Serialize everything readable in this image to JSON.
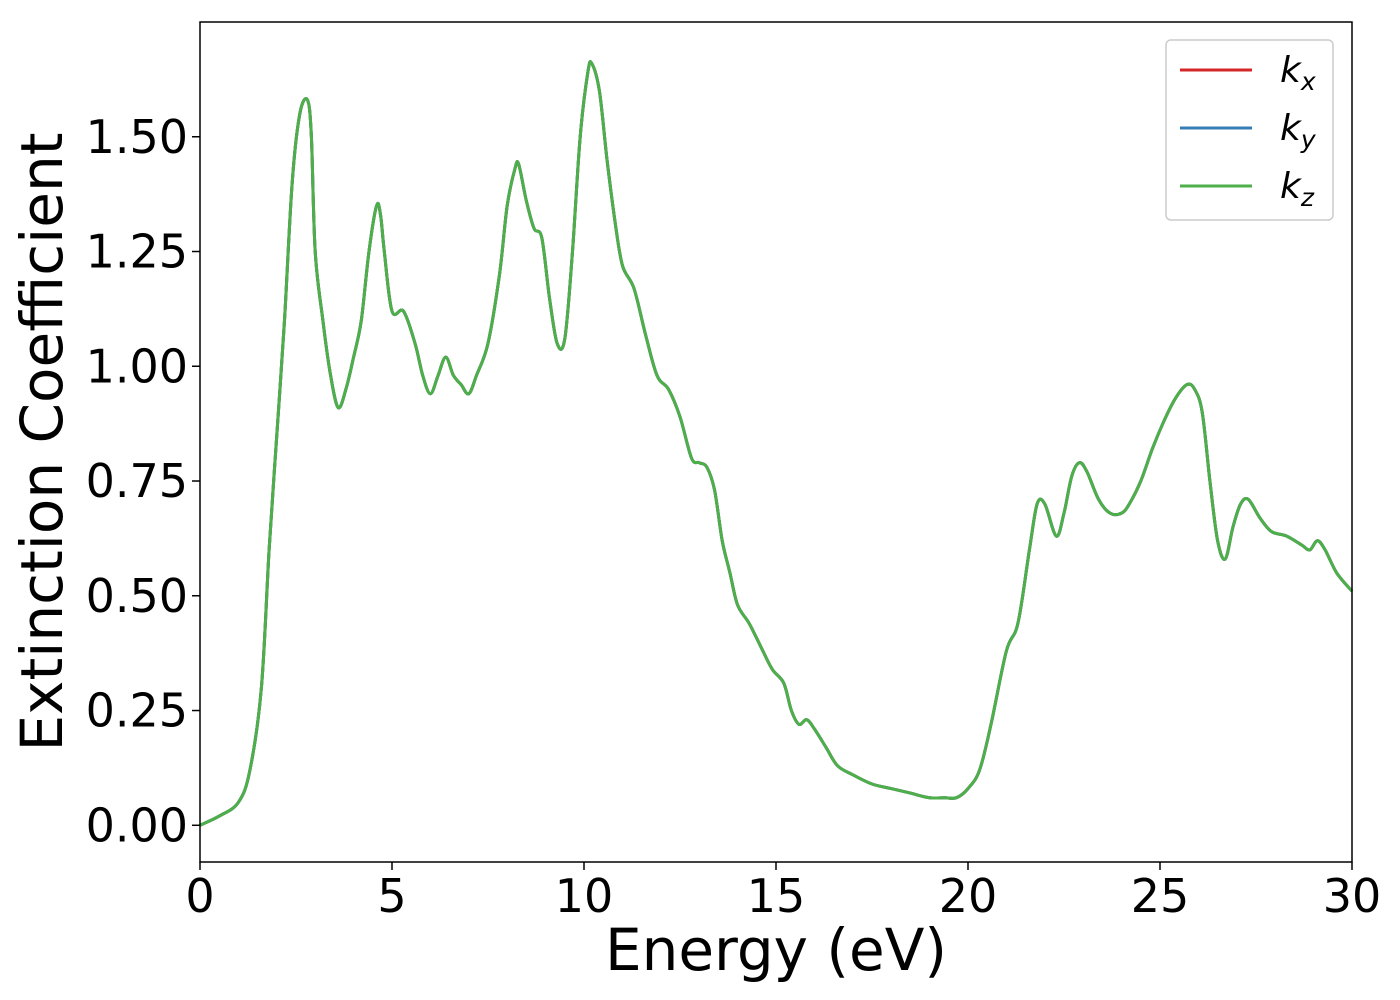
{
  "chart_data": {
    "type": "line",
    "title": "",
    "xlabel": "Energy (eV)",
    "ylabel": "Extinction Coefficient",
    "xlim": [
      0,
      30
    ],
    "ylim": [
      -0.08,
      1.75
    ],
    "xticks": [
      0,
      5,
      10,
      15,
      20,
      25,
      30
    ],
    "xtick_labels": [
      "0",
      "5",
      "10",
      "15",
      "20",
      "25",
      "30"
    ],
    "yticks": [
      0,
      0.25,
      0.5,
      0.75,
      1.0,
      1.25,
      1.5
    ],
    "ytick_labels": [
      "0.00",
      "0.25",
      "0.50",
      "0.75",
      "1.00",
      "1.25",
      "1.50"
    ],
    "grid": false,
    "legend_position": "top-right",
    "x": [
      0,
      0.5,
      1.0,
      1.3,
      1.6,
      1.8,
      2.0,
      2.2,
      2.4,
      2.6,
      2.8,
      2.9,
      3.0,
      3.2,
      3.4,
      3.6,
      3.8,
      4.0,
      4.2,
      4.4,
      4.6,
      4.7,
      4.8,
      5.0,
      5.3,
      5.6,
      5.8,
      6.0,
      6.2,
      6.4,
      6.6,
      6.8,
      7.0,
      7.2,
      7.5,
      7.8,
      8.0,
      8.2,
      8.3,
      8.5,
      8.7,
      8.9,
      9.1,
      9.3,
      9.5,
      9.7,
      9.9,
      10.1,
      10.2,
      10.4,
      10.6,
      10.8,
      11.0,
      11.3,
      11.6,
      11.9,
      12.2,
      12.5,
      12.8,
      13.0,
      13.2,
      13.4,
      13.6,
      13.8,
      14.0,
      14.3,
      14.6,
      14.9,
      15.2,
      15.4,
      15.6,
      15.8,
      16.0,
      16.3,
      16.6,
      17.0,
      17.5,
      18.0,
      18.5,
      19.0,
      19.4,
      19.7,
      20.0,
      20.3,
      20.6,
      21.0,
      21.3,
      21.6,
      21.8,
      22.0,
      22.3,
      22.5,
      22.7,
      22.9,
      23.1,
      23.4,
      23.7,
      24.0,
      24.2,
      24.5,
      24.8,
      25.1,
      25.4,
      25.7,
      25.9,
      26.1,
      26.3,
      26.5,
      26.7,
      26.9,
      27.1,
      27.3,
      27.6,
      27.9,
      28.3,
      28.7,
      28.9,
      29.1,
      29.3,
      29.6,
      30.0
    ],
    "series": [
      {
        "name": "k_x",
        "label_main": "k",
        "label_sub": "x",
        "color": "#d62728",
        "values": [
          0.0,
          0.02,
          0.05,
          0.12,
          0.3,
          0.6,
          0.85,
          1.1,
          1.4,
          1.55,
          1.58,
          1.5,
          1.25,
          1.1,
          0.98,
          0.91,
          0.95,
          1.02,
          1.1,
          1.25,
          1.35,
          1.33,
          1.25,
          1.12,
          1.12,
          1.05,
          0.98,
          0.94,
          0.98,
          1.02,
          0.98,
          0.96,
          0.94,
          0.98,
          1.05,
          1.2,
          1.35,
          1.43,
          1.44,
          1.36,
          1.3,
          1.28,
          1.15,
          1.05,
          1.06,
          1.25,
          1.5,
          1.64,
          1.66,
          1.6,
          1.45,
          1.32,
          1.22,
          1.17,
          1.07,
          0.98,
          0.95,
          0.89,
          0.8,
          0.79,
          0.78,
          0.73,
          0.62,
          0.55,
          0.48,
          0.44,
          0.39,
          0.34,
          0.31,
          0.25,
          0.22,
          0.23,
          0.21,
          0.17,
          0.13,
          0.11,
          0.09,
          0.08,
          0.07,
          0.06,
          0.06,
          0.06,
          0.08,
          0.12,
          0.22,
          0.38,
          0.44,
          0.6,
          0.7,
          0.7,
          0.63,
          0.68,
          0.76,
          0.79,
          0.77,
          0.71,
          0.68,
          0.68,
          0.7,
          0.75,
          0.82,
          0.88,
          0.93,
          0.96,
          0.95,
          0.9,
          0.75,
          0.62,
          0.58,
          0.65,
          0.7,
          0.71,
          0.67,
          0.64,
          0.63,
          0.61,
          0.6,
          0.62,
          0.6,
          0.55,
          0.51
        ]
      },
      {
        "name": "k_y",
        "label_main": "k",
        "label_sub": "y",
        "color": "#377eb8",
        "values": [
          0.0,
          0.02,
          0.05,
          0.12,
          0.3,
          0.6,
          0.85,
          1.1,
          1.4,
          1.55,
          1.58,
          1.5,
          1.25,
          1.1,
          0.98,
          0.91,
          0.95,
          1.02,
          1.1,
          1.25,
          1.35,
          1.33,
          1.25,
          1.12,
          1.12,
          1.05,
          0.98,
          0.94,
          0.98,
          1.02,
          0.98,
          0.96,
          0.94,
          0.98,
          1.05,
          1.2,
          1.35,
          1.43,
          1.44,
          1.36,
          1.3,
          1.28,
          1.15,
          1.05,
          1.06,
          1.25,
          1.5,
          1.64,
          1.66,
          1.6,
          1.45,
          1.32,
          1.22,
          1.17,
          1.07,
          0.98,
          0.95,
          0.89,
          0.8,
          0.79,
          0.78,
          0.73,
          0.62,
          0.55,
          0.48,
          0.44,
          0.39,
          0.34,
          0.31,
          0.25,
          0.22,
          0.23,
          0.21,
          0.17,
          0.13,
          0.11,
          0.09,
          0.08,
          0.07,
          0.06,
          0.06,
          0.06,
          0.08,
          0.12,
          0.22,
          0.38,
          0.44,
          0.6,
          0.7,
          0.7,
          0.63,
          0.68,
          0.76,
          0.79,
          0.77,
          0.71,
          0.68,
          0.68,
          0.7,
          0.75,
          0.82,
          0.88,
          0.93,
          0.96,
          0.95,
          0.9,
          0.75,
          0.62,
          0.58,
          0.65,
          0.7,
          0.71,
          0.67,
          0.64,
          0.63,
          0.61,
          0.6,
          0.62,
          0.6,
          0.55,
          0.51
        ]
      },
      {
        "name": "k_z",
        "label_main": "k",
        "label_sub": "z",
        "color": "#4daf4a",
        "values": [
          0.0,
          0.02,
          0.05,
          0.12,
          0.3,
          0.6,
          0.85,
          1.1,
          1.4,
          1.55,
          1.58,
          1.5,
          1.25,
          1.1,
          0.98,
          0.91,
          0.95,
          1.02,
          1.1,
          1.25,
          1.35,
          1.33,
          1.25,
          1.12,
          1.12,
          1.05,
          0.98,
          0.94,
          0.98,
          1.02,
          0.98,
          0.96,
          0.94,
          0.98,
          1.05,
          1.2,
          1.35,
          1.43,
          1.44,
          1.36,
          1.3,
          1.28,
          1.15,
          1.05,
          1.06,
          1.25,
          1.5,
          1.64,
          1.66,
          1.6,
          1.45,
          1.32,
          1.22,
          1.17,
          1.07,
          0.98,
          0.95,
          0.89,
          0.8,
          0.79,
          0.78,
          0.73,
          0.62,
          0.55,
          0.48,
          0.44,
          0.39,
          0.34,
          0.31,
          0.25,
          0.22,
          0.23,
          0.21,
          0.17,
          0.13,
          0.11,
          0.09,
          0.08,
          0.07,
          0.06,
          0.06,
          0.06,
          0.08,
          0.12,
          0.22,
          0.38,
          0.44,
          0.6,
          0.7,
          0.7,
          0.63,
          0.68,
          0.76,
          0.79,
          0.77,
          0.71,
          0.68,
          0.68,
          0.7,
          0.75,
          0.82,
          0.88,
          0.93,
          0.96,
          0.95,
          0.9,
          0.75,
          0.62,
          0.58,
          0.65,
          0.7,
          0.71,
          0.67,
          0.64,
          0.63,
          0.61,
          0.6,
          0.62,
          0.6,
          0.55,
          0.51
        ]
      }
    ]
  }
}
